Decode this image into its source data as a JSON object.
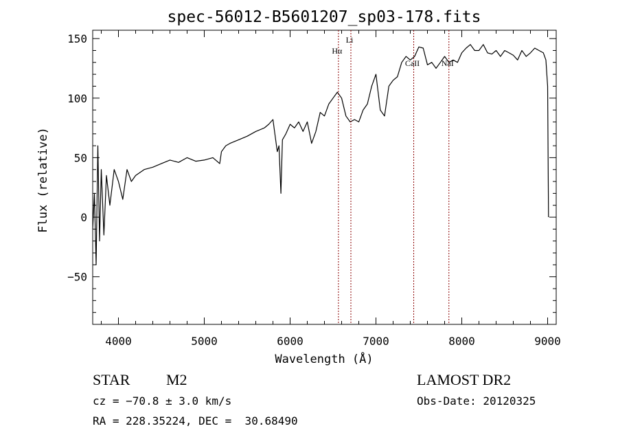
{
  "chart_data": {
    "type": "line",
    "title": "spec-56012-B5601207_sp03-178.fits",
    "xlabel": "Wavelength (Å)",
    "ylabel": "Flux (relative)",
    "xlim": [
      3700,
      9100
    ],
    "ylim": [
      -90,
      157
    ],
    "xticks": [
      4000,
      5000,
      6000,
      7000,
      8000,
      9000
    ],
    "xtick_labels": [
      "4000",
      "5000",
      "6000",
      "7000",
      "8000",
      "9000"
    ],
    "yticks": [
      -50,
      0,
      50,
      100,
      150
    ],
    "ytick_labels": [
      "−50",
      "0",
      "50",
      "100",
      "150"
    ],
    "grid": false,
    "line_color": "#000000",
    "marker_color": "#8b0000",
    "series": [
      {
        "x": [
          3700,
          3720,
          3740,
          3760,
          3780,
          3800,
          3830,
          3860,
          3900,
          3950,
          4000,
          4050,
          4100,
          4150,
          4200,
          4300,
          4400,
          4500,
          4600,
          4700,
          4800,
          4900,
          5000,
          5100,
          5180,
          5200,
          5250,
          5300,
          5400,
          5500,
          5600,
          5700,
          5750,
          5800,
          5850,
          5870,
          5893,
          5910,
          5950,
          6000,
          6050,
          6100,
          6150,
          6200,
          6250,
          6300,
          6350,
          6400,
          6450,
          6500,
          6550,
          6600,
          6650,
          6700,
          6750,
          6800,
          6850,
          6900,
          6950,
          7000,
          7050,
          7100,
          7150,
          7200,
          7250,
          7300,
          7350,
          7400,
          7450,
          7500,
          7550,
          7600,
          7650,
          7700,
          7750,
          7800,
          7850,
          7900,
          7950,
          8000,
          8050,
          8100,
          8150,
          8200,
          8250,
          8300,
          8350,
          8400,
          8450,
          8500,
          8550,
          8600,
          8650,
          8700,
          8750,
          8800,
          8850,
          8900,
          8950,
          8980,
          9000,
          9010
        ],
        "y": [
          -10,
          20,
          -40,
          60,
          -20,
          40,
          -15,
          35,
          10,
          40,
          30,
          15,
          40,
          30,
          35,
          40,
          42,
          45,
          48,
          46,
          50,
          47,
          48,
          50,
          45,
          55,
          60,
          62,
          65,
          68,
          72,
          75,
          78,
          82,
          55,
          60,
          20,
          65,
          70,
          78,
          75,
          80,
          72,
          80,
          62,
          72,
          88,
          85,
          95,
          100,
          105,
          100,
          85,
          80,
          82,
          80,
          90,
          95,
          110,
          120,
          90,
          85,
          110,
          115,
          118,
          130,
          135,
          132,
          135,
          143,
          142,
          128,
          130,
          125,
          130,
          135,
          130,
          132,
          130,
          138,
          142,
          145,
          140,
          140,
          145,
          138,
          137,
          140,
          135,
          140,
          138,
          136,
          132,
          140,
          135,
          138,
          142,
          140,
          138,
          132,
          110,
          0
        ]
      }
    ],
    "markers": [
      {
        "label": "Hα",
        "x": 6563
      },
      {
        "label": "Li",
        "x": 6708
      },
      {
        "label": "CaII",
        "x": 7440
      },
      {
        "label": "NaI",
        "x": 7850
      }
    ]
  },
  "info": {
    "class_label": "STAR",
    "subclass": "M2",
    "cz": "cz = −70.8 ± 3.0 km/s",
    "coords": "RA = 228.35224, DEC =  30.68490",
    "survey": "LAMOST DR2",
    "obs_date": "Obs-Date: 20120325"
  }
}
